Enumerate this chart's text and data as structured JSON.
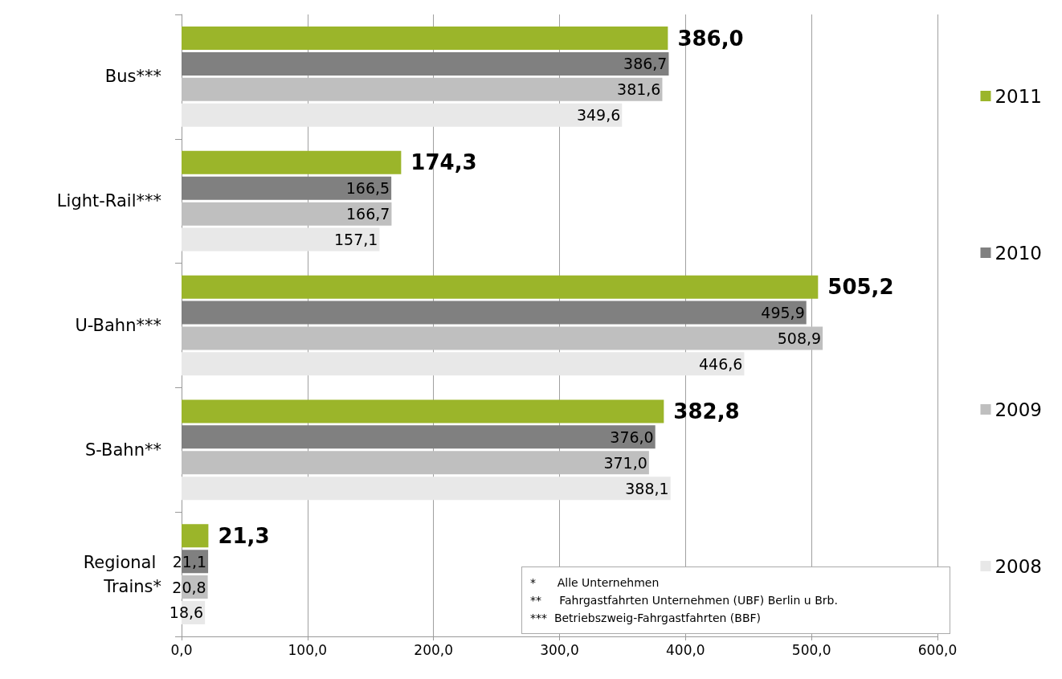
{
  "chart_data": {
    "type": "bar",
    "orientation": "horizontal",
    "categories": [
      "Bus***",
      "Light-Rail***",
      "U-Bahn***",
      "S-Bahn**",
      "Regional Trains*"
    ],
    "series": [
      {
        "name": "2011",
        "color": "#9bb52a",
        "values": [
          386.0,
          174.3,
          505.2,
          382.8,
          21.3
        ],
        "value_labels": [
          "386,0",
          "174,3",
          "505,2",
          "382,8",
          "21,3"
        ]
      },
      {
        "name": "2010",
        "color": "#808080",
        "values": [
          386.7,
          166.5,
          495.9,
          376.0,
          21.1
        ],
        "value_labels": [
          "386,7",
          "166,5",
          "495,9",
          "376,0",
          "21,1"
        ]
      },
      {
        "name": "2009",
        "color": "#bfbfbf",
        "values": [
          381.6,
          166.7,
          508.9,
          371.0,
          20.8
        ],
        "value_labels": [
          "381,6",
          "166,7",
          "508,9",
          "371,0",
          "20,8"
        ]
      },
      {
        "name": "2008",
        "color": "#e8e8e8",
        "values": [
          349.6,
          157.1,
          446.6,
          388.1,
          18.6
        ],
        "value_labels": [
          "349,6",
          "157,1",
          "446,6",
          "388,1",
          "18,6"
        ]
      }
    ],
    "xlim": [
      0,
      600
    ],
    "xticks": [
      {
        "value": 0,
        "label": "0,0"
      },
      {
        "value": 100,
        "label": "100,0"
      },
      {
        "value": 200,
        "label": "200,0"
      },
      {
        "value": 300,
        "label": "300,0"
      },
      {
        "value": 400,
        "label": "400,0"
      },
      {
        "value": 500,
        "label": "500,0"
      },
      {
        "value": 600,
        "label": "600,0"
      }
    ],
    "grid": "x",
    "legend": "right",
    "annotations": [
      "*      Alle Unternehmen",
      "**     Fahrgastfahrten Unternehmen (UBF) Berlin u Brb.",
      "***  Betriebszweig-Fahrgastfahrten (BBF)"
    ]
  }
}
